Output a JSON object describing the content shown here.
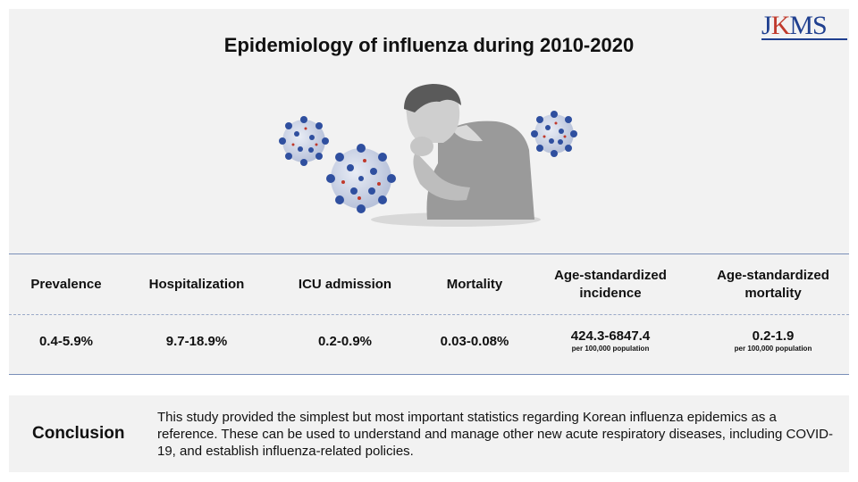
{
  "title": "Epidemiology of influenza during 2010-2020",
  "logo": {
    "j": "J",
    "k": "K",
    "ms": "MS"
  },
  "icons": {
    "virus": "virus-icon",
    "person": "coughing-person-icon"
  },
  "colors": {
    "virus": "#2f4f9f",
    "accent": "#1f3f8f",
    "panel": "#f2f2f2"
  },
  "table": {
    "headers": [
      {
        "label": "Prevalence"
      },
      {
        "label": "Hospitalization"
      },
      {
        "label": "ICU admission"
      },
      {
        "label": "Mortality"
      },
      {
        "label": "Age-standardized incidence"
      },
      {
        "label": "Age-standardized mortality"
      }
    ],
    "values": [
      {
        "value": "0.4-5.9%"
      },
      {
        "value": "9.7-18.9%"
      },
      {
        "value": "0.2-0.9%"
      },
      {
        "value": "0.03-0.08%"
      },
      {
        "value": "424.3-6847.4",
        "note": "per 100,000 population"
      },
      {
        "value": "0.2-1.9",
        "note": "per 100,000 population"
      }
    ]
  },
  "conclusion": {
    "label": "Conclusion",
    "text": "This study provided the simplest but most important statistics regarding Korean influenza epidemics as a reference. These can be used to understand and manage other new acute respiratory diseases, including COVID-19, and establish influenza-related policies."
  }
}
